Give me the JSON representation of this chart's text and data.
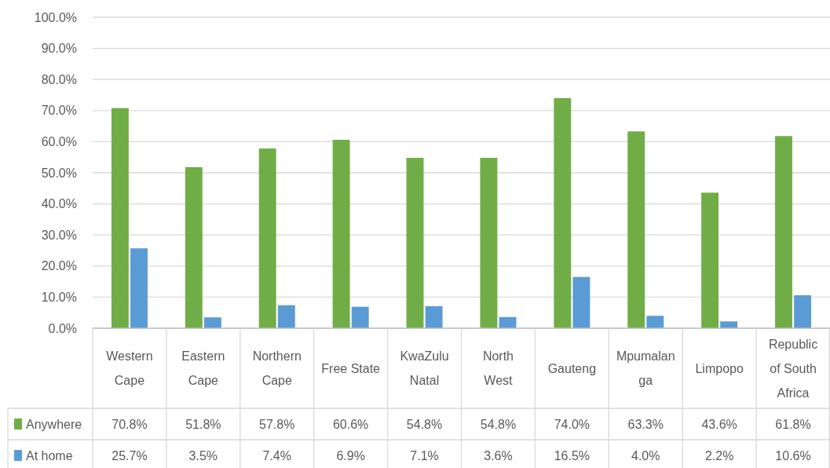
{
  "chart_data": {
    "type": "bar",
    "categories": [
      "Western Cape",
      "Eastern Cape",
      "Northern Cape",
      "Free State",
      "KwaZulu Natal",
      "North West",
      "Gauteng",
      "Mpumalanga",
      "Limpopo",
      "Republic of South Africa"
    ],
    "series": [
      {
        "name": "Anywhere",
        "color": "#70ad47",
        "values": [
          70.8,
          51.8,
          57.8,
          60.6,
          54.8,
          54.8,
          74.0,
          63.3,
          43.6,
          61.8
        ],
        "value_labels": [
          "70.8%",
          "51.8%",
          "57.8%",
          "60.6%",
          "54.8%",
          "54.8%",
          "74.0%",
          "63.3%",
          "43.6%",
          "61.8%"
        ]
      },
      {
        "name": "At home",
        "color": "#5b9bd5",
        "values": [
          25.7,
          3.5,
          7.4,
          6.9,
          7.1,
          3.6,
          16.5,
          4.0,
          2.2,
          10.6
        ],
        "value_labels": [
          "25.7%",
          "3.5%",
          "7.4%",
          "6.9%",
          "7.1%",
          "3.6%",
          "16.5%",
          "4.0%",
          "2.2%",
          "10.6%"
        ]
      }
    ],
    "ylim": [
      0,
      100
    ],
    "yticks": [
      {
        "value": 0,
        "label": "0.0%"
      },
      {
        "value": 10,
        "label": "10.0%"
      },
      {
        "value": 20,
        "label": "20.0%"
      },
      {
        "value": 30,
        "label": "30.0%"
      },
      {
        "value": 40,
        "label": "40.0%"
      },
      {
        "value": 50,
        "label": "50.0%"
      },
      {
        "value": 60,
        "label": "60.0%"
      },
      {
        "value": 70,
        "label": "70.0%"
      },
      {
        "value": 80,
        "label": "80.0%"
      },
      {
        "value": 90,
        "label": "90.0%"
      },
      {
        "value": 100,
        "label": "100.0%"
      }
    ],
    "grid": "y",
    "legend": "bottom"
  }
}
